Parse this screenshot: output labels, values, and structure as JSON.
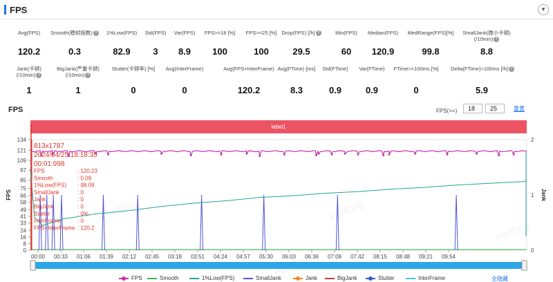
{
  "header": {
    "title": "FPS",
    "collapse_icon": "chevron-down-icon",
    "accent": "#1e73e8"
  },
  "metrics_row1": [
    {
      "label": "Avg(FPS)",
      "value": "120.2",
      "help": false
    },
    {
      "label": "Smooth(稳帧指数)",
      "value": "0.3",
      "help": true
    },
    {
      "label": "1%Low(FPS)",
      "value": "82.9",
      "help": false
    },
    {
      "label": "Std(FPS)",
      "value": "3",
      "help": false
    },
    {
      "label": "Var(FPS)",
      "value": "8.9",
      "help": false
    },
    {
      "label": "FPS>=18 [%]",
      "value": "100",
      "help": false
    },
    {
      "label": "FPS>=25 [%]",
      "value": "100",
      "help": false
    },
    {
      "label": "Drop(FPS) [/h]",
      "value": "29.5",
      "help": true
    },
    {
      "label": "Min(FPS)",
      "value": "60",
      "help": false
    },
    {
      "label": "Median(FPS)",
      "value": "120.9",
      "help": false
    },
    {
      "label": "MedRange(FPS)[%]",
      "value": "99.8",
      "help": false
    },
    {
      "label": "SmallJank(微小卡顿)",
      "label2": "(/10min)",
      "value": "8.8",
      "help": true
    }
  ],
  "metrics_row2": [
    {
      "label": "Jank(卡顿)",
      "label2": "(/10min)",
      "value": "1",
      "help": true
    },
    {
      "label": "BigJank(严重卡顿)",
      "label2": "(/10min)",
      "value": "1",
      "help": true
    },
    {
      "label": "Stutter(卡顿率) [%]",
      "value": "0",
      "help": false
    },
    {
      "label": "Avg(InterFrame)",
      "value": "0",
      "help": false
    },
    {
      "label": "Avg(FPS+InterFrame)",
      "value": "120.2",
      "help": false
    },
    {
      "label": "Avg(FTime) [ms]",
      "value": "8.3",
      "help": false
    },
    {
      "label": "Std(FTime)",
      "value": "0.9",
      "help": false
    },
    {
      "label": "Var(FTime)",
      "value": "0.9",
      "help": false
    },
    {
      "label": "FTime>=100ms [%]",
      "value": "0",
      "help": false
    },
    {
      "label": "Delta(FTime)>100ms [/h]",
      "value": "5.9",
      "help": true
    }
  ],
  "chart_section": {
    "title": "FPS",
    "threshold_label": "FPS(>=)",
    "threshold_low": "18",
    "threshold_high": "25",
    "reset_label": "重置",
    "label_bar": "label1",
    "watermark": "PerfDog"
  },
  "tooltip": {
    "resolution": "813x1787",
    "date": "2024/04/25 18:18:35",
    "elapsed": "00:01:998",
    "rows": [
      {
        "name": "FPS",
        "value": ": 120.23"
      },
      {
        "name": "Smooth",
        "value": ": 0.09"
      },
      {
        "name": "1%Low(FPS)",
        "value": ": 98.09"
      },
      {
        "name": "SmallJank",
        "value": ": 0"
      },
      {
        "name": "Jank",
        "value": ": 0"
      },
      {
        "name": "BigJank",
        "value": ": 0"
      },
      {
        "name": "Stutter",
        "value": ": 0%"
      },
      {
        "name": "InterFrame",
        "value": ": 0"
      },
      {
        "name": "FPS+InterFrame",
        "value": ": 120.2"
      }
    ]
  },
  "chart_data": {
    "type": "line",
    "ylabel": "FPS",
    "ylabel_right": "Jank",
    "y_ticks": [
      "0",
      "8",
      "16",
      "24",
      "33",
      "41",
      "49",
      "58",
      "66",
      "75",
      "85",
      "97",
      "109",
      "121",
      "134"
    ],
    "y_tick_values": [
      0,
      8,
      16,
      24,
      33,
      41,
      49,
      58,
      66,
      75,
      85,
      97,
      109,
      121,
      134
    ],
    "ylim": [
      0,
      134
    ],
    "y2_ticks": [
      "0",
      "1",
      "2"
    ],
    "y2lim": [
      0,
      2
    ],
    "x_ticks": [
      "00:00",
      "00:33",
      "01:06",
      "01:39",
      "02:12",
      "02:45",
      "03:18",
      "03:51",
      "04:24",
      "04:57",
      "05:30",
      "06:03",
      "06:36",
      "07:09",
      "07:42",
      "08:15",
      "08:48",
      "09:21",
      "09:54"
    ],
    "xlim_seconds": [
      0,
      606
    ],
    "series": [
      {
        "name": "FPS",
        "color": "#c42fb0",
        "baseline": 120,
        "dips_seconds": [
          13,
          27,
          47,
          80,
          95,
          160,
          196,
          233,
          264,
          280,
          310,
          349,
          352,
          368,
          384,
          400,
          431,
          438,
          470,
          509,
          545,
          572,
          590
        ],
        "dips_values": [
          115,
          116,
          114,
          117,
          116,
          117,
          115,
          116,
          117,
          114,
          116,
          115,
          117,
          116,
          117,
          116,
          115,
          116,
          117,
          116,
          117,
          115,
          116
        ]
      },
      {
        "name": "Smooth",
        "color": "#3bb44a",
        "values_note": "near zero"
      },
      {
        "name": "1%Low(FPS)",
        "color": "#20a59a",
        "points": [
          [
            0,
            98
          ],
          [
            5,
            40
          ],
          [
            15,
            30
          ],
          [
            40,
            38
          ],
          [
            80,
            44
          ],
          [
            120,
            48
          ],
          [
            160,
            53
          ],
          [
            200,
            57
          ],
          [
            240,
            60
          ],
          [
            280,
            64
          ],
          [
            320,
            66
          ],
          [
            360,
            69
          ],
          [
            400,
            71
          ],
          [
            440,
            74
          ],
          [
            480,
            76
          ],
          [
            520,
            79
          ],
          [
            560,
            81
          ],
          [
            600,
            83
          ],
          [
            606,
            84
          ]
        ]
      },
      {
        "name": "SmallJank",
        "color": "#4f55d6",
        "spikes_seconds": [
          12,
          20,
          28,
          38,
          89,
          131,
          209,
          285,
          375,
          520
        ],
        "spike_value": 1
      },
      {
        "name": "Jank",
        "color": "#f08a29",
        "values_note": "zero"
      },
      {
        "name": "BigJank",
        "color": "#d9362b",
        "spikes_seconds": [
          0
        ],
        "spike_value": 2
      },
      {
        "name": "Stutter",
        "color": "#2e5bc8",
        "values_note": "zero"
      },
      {
        "name": "InterFrame",
        "color": "#3ac6e0",
        "values_note": "zero"
      }
    ]
  },
  "legend": {
    "items": [
      {
        "name": "FPS",
        "color": "#c42fb0",
        "marker": "dot"
      },
      {
        "name": "Smooth",
        "color": "#3bb44a",
        "marker": "line"
      },
      {
        "name": "1%Low(FPS)",
        "color": "#20a59a",
        "marker": "line"
      },
      {
        "name": "SmallJank",
        "color": "#4f55d6",
        "marker": "line"
      },
      {
        "name": "Jank",
        "color": "#f08a29",
        "marker": "dot"
      },
      {
        "name": "BigJank",
        "color": "#d9362b",
        "marker": "line"
      },
      {
        "name": "Stutter",
        "color": "#2e5bc8",
        "marker": "dot"
      },
      {
        "name": "InterFrame",
        "color": "#3ac6e0",
        "marker": "line"
      }
    ],
    "hide_all": "全隐藏"
  }
}
